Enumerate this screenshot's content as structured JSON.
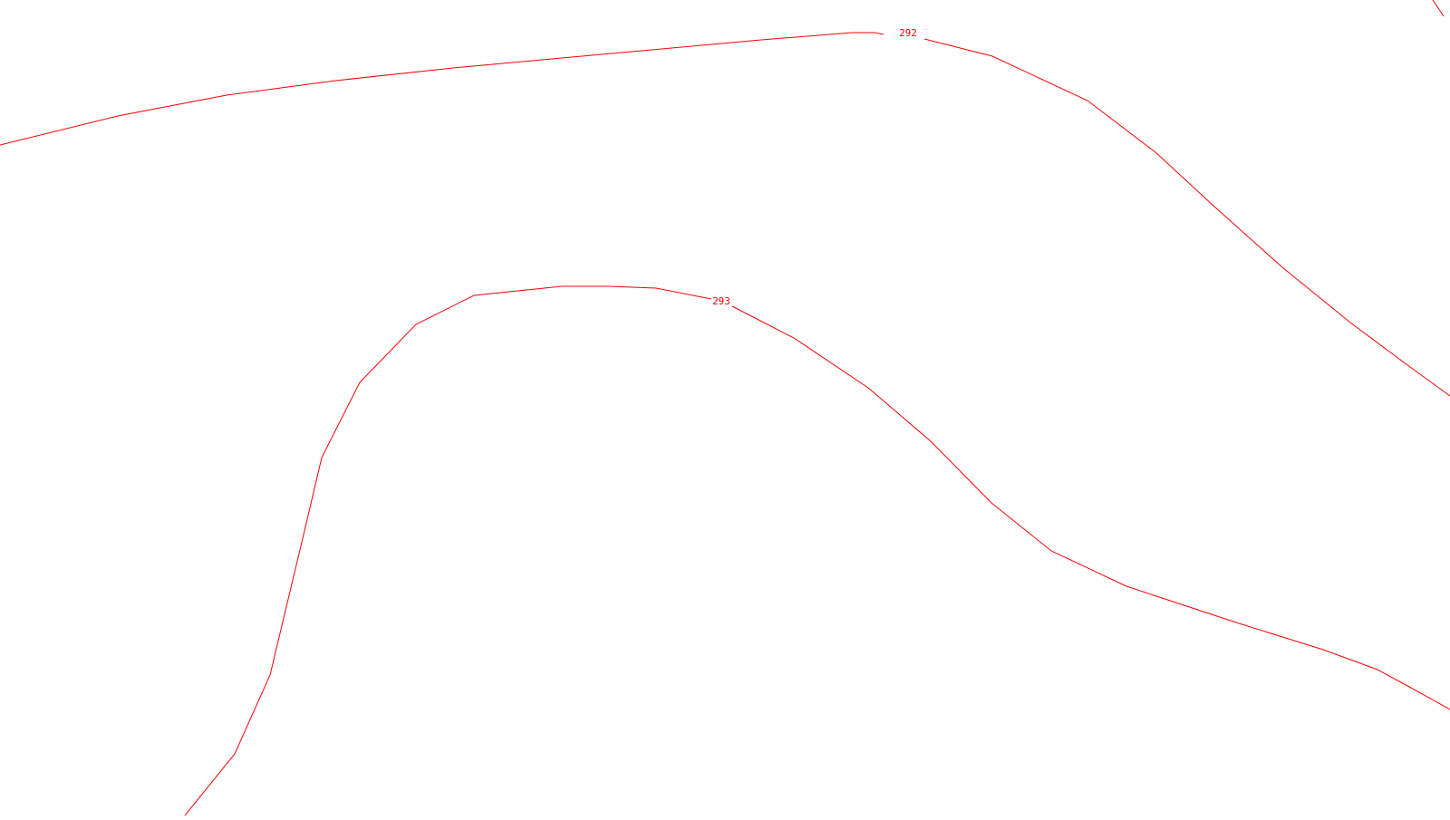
{
  "map": {
    "line_color": "#ff0000",
    "background_color": "#ffffff",
    "contours": [
      {
        "id": "upper",
        "label": "292"
      },
      {
        "id": "lower",
        "label": "293"
      },
      {
        "id": "corner",
        "label": ""
      }
    ]
  }
}
